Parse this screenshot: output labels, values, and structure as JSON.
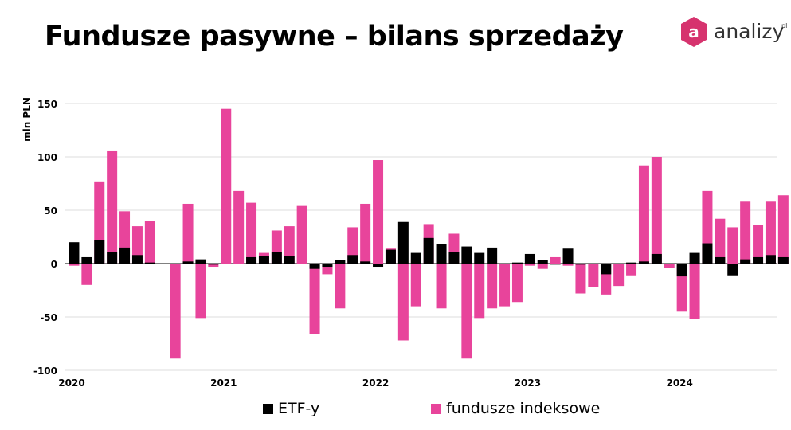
{
  "title": "Fundusze pasywne – bilans sprzedaży",
  "logo": {
    "text": "analizy",
    "superscript": "pl",
    "mark_letter": "a"
  },
  "colors": {
    "etf": "#000000",
    "index": "#e8449b",
    "grid": "#dddddd",
    "axis": "#000000",
    "brand": "#d6336e"
  },
  "chart_data": {
    "type": "bar",
    "stacked": false,
    "ylabel": "mln PLN",
    "ylim": [
      -100,
      150
    ],
    "yticks": [
      -100,
      -50,
      0,
      50,
      100,
      150
    ],
    "xtick_labels": [
      "2020",
      "2021",
      "2022",
      "2023",
      "2024"
    ],
    "months_start": "2020-01",
    "legend": "bottom",
    "grid": true,
    "series": [
      {
        "name": "ETF-y",
        "color": "#000000",
        "values": [
          20,
          6,
          22,
          11,
          15,
          8,
          1,
          0,
          0,
          2,
          4,
          -1,
          0,
          0,
          6,
          7,
          11,
          7,
          0,
          -5,
          -3,
          3,
          8,
          2,
          -3,
          13,
          39,
          10,
          24,
          18,
          11,
          16,
          10,
          15,
          0,
          1,
          9,
          3,
          -1,
          14,
          -1,
          0,
          -10,
          0,
          1,
          2,
          9,
          0,
          -12,
          10,
          19,
          6,
          -11,
          4,
          6,
          8,
          6
        ]
      },
      {
        "name": "fundusze indeksowe",
        "color": "#e8449b",
        "values": [
          -2,
          -20,
          77,
          106,
          49,
          35,
          40,
          0,
          -89,
          56,
          -51,
          -3,
          145,
          68,
          57,
          10,
          31,
          35,
          54,
          -66,
          -10,
          -42,
          34,
          56,
          97,
          14,
          -72,
          -40,
          37,
          -42,
          28,
          -89,
          -51,
          -42,
          -40,
          -36,
          -2,
          -5,
          6,
          -2,
          -28,
          -22,
          -29,
          -21,
          -11,
          92,
          100,
          -4,
          -45,
          -52,
          68,
          42,
          34,
          58,
          36,
          58,
          64
        ]
      }
    ]
  }
}
